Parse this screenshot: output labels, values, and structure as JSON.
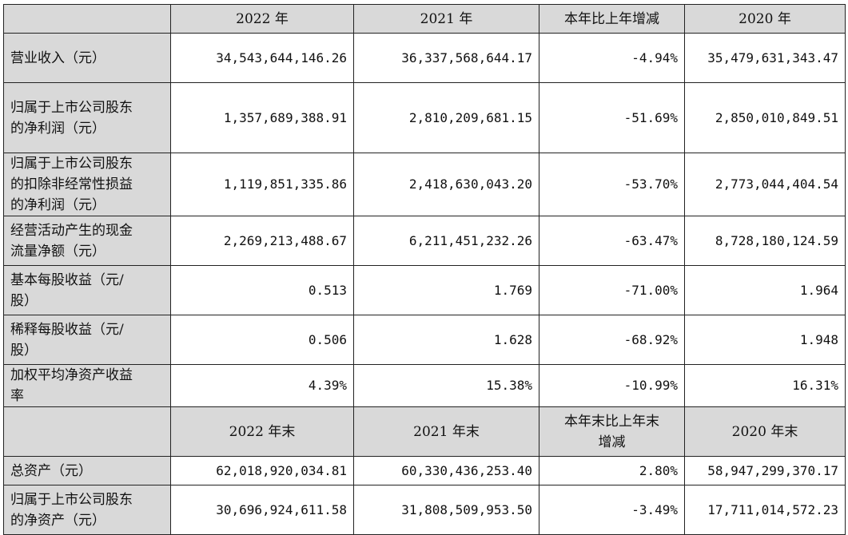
{
  "header1": [
    "2022 年",
    "2021 年",
    "本年比上年增减",
    "2020 年"
  ],
  "rows1": [
    {
      "label": [
        "营业收入（元）"
      ],
      "values": [
        "34,543,644,146.26",
        "36,337,568,644.17",
        "-4.94%",
        "35,479,631,343.47"
      ]
    },
    {
      "label": [
        "归属于上市公司股东",
        "的净利润（元）"
      ],
      "values": [
        "1,357,689,388.91",
        "2,810,209,681.15",
        "-51.69%",
        "2,850,010,849.51"
      ]
    },
    {
      "label": [
        "归属于上市公司股东",
        "的扣除非经常性损益",
        "的净利润（元）"
      ],
      "values": [
        "1,119,851,335.86",
        "2,418,630,043.20",
        "-53.70%",
        "2,773,044,404.54"
      ]
    },
    {
      "label": [
        "经营活动产生的现金",
        "流量净额（元）"
      ],
      "values": [
        "2,269,213,488.67",
        "6,211,451,232.26",
        "-63.47%",
        "8,728,180,124.59"
      ]
    },
    {
      "label": [
        "基本每股收益（元/",
        "股）"
      ],
      "values": [
        "0.513",
        "1.769",
        "-71.00%",
        "1.964"
      ]
    },
    {
      "label": [
        "稀释每股收益（元/",
        "股）"
      ],
      "values": [
        "0.506",
        "1.628",
        "-68.92%",
        "1.948"
      ]
    },
    {
      "label": [
        "加权平均净资产收益",
        "率"
      ],
      "values": [
        "4.39%",
        "15.38%",
        "-10.99%",
        "16.31%"
      ]
    }
  ],
  "header2": [
    "2022 年末",
    "2021 年末",
    [
      "本年末比上年末",
      "增减"
    ],
    "2020 年末"
  ],
  "rows2": [
    {
      "label": [
        "总资产（元）"
      ],
      "values": [
        "62,018,920,034.81",
        "60,330,436,253.40",
        "2.80%",
        "58,947,299,370.17"
      ]
    },
    {
      "label": [
        "归属于上市公司股东",
        "的净资产（元）"
      ],
      "values": [
        "30,696,924,611.58",
        "31,808,509,953.50",
        "-3.49%",
        "17,711,014,572.23"
      ]
    }
  ]
}
